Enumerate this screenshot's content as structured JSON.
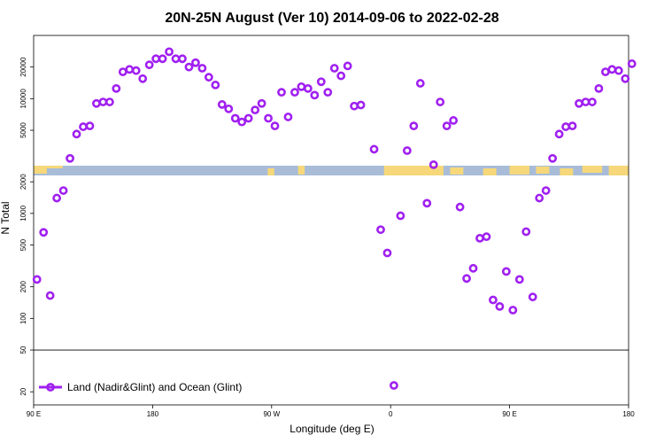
{
  "chart_data": {
    "type": "scatter",
    "title": "20N-25N August (Ver 10)   2014-09-06 to 2022-02-28",
    "xlabel": "Longitude (deg E)",
    "ylabel": "N Total",
    "x_tick_labels": [
      "90 E",
      "180",
      "90 W",
      "0",
      "90 E",
      "180"
    ],
    "x_tick_values": [
      90,
      180,
      270,
      360,
      450,
      540
    ],
    "xlim": [
      90,
      540
    ],
    "scale": "log",
    "y_tick_labels": [
      "20",
      "50",
      "100",
      "200",
      "500",
      "1000",
      "2000",
      "5000",
      "10000",
      "20000"
    ],
    "y_tick_values": [
      20,
      50,
      100,
      200,
      500,
      1000,
      2000,
      5000,
      10000,
      20000
    ],
    "y_break_lower": [
      15,
      2300
    ],
    "y_break_upper": [
      2300,
      40000
    ],
    "reference_line": 50,
    "map_strip": {
      "ocean_color": "#a8bcd8",
      "land_color": "#f6d87a"
    },
    "legend": {
      "label": "Land (Nadir&Glint) and Ocean (Glint)",
      "position": "bottom-left"
    },
    "series": [
      {
        "name": "Land (Nadir&Glint) and Ocean (Glint)",
        "color": "#a020f0",
        "points": [
          [
            92.5,
            235
          ],
          [
            97.5,
            660
          ],
          [
            102.5,
            165
          ],
          [
            107.5,
            1400
          ],
          [
            112.5,
            1650
          ],
          [
            117.5,
            2700
          ],
          [
            122.5,
            4600
          ],
          [
            127.5,
            5400
          ],
          [
            132.5,
            5500
          ],
          [
            137.5,
            9000
          ],
          [
            142.5,
            9300
          ],
          [
            147.5,
            9300
          ],
          [
            152.5,
            12500
          ],
          [
            157.5,
            18000
          ],
          [
            162.5,
            19000
          ],
          [
            167.5,
            18500
          ],
          [
            172.5,
            15500
          ],
          [
            177.5,
            21000
          ],
          [
            182.5,
            24000
          ],
          [
            187.5,
            24000
          ],
          [
            192.5,
            28000
          ],
          [
            197.5,
            24000
          ],
          [
            202.5,
            24000
          ],
          [
            207.5,
            20000
          ],
          [
            212.5,
            22000
          ],
          [
            217.5,
            19500
          ],
          [
            222.5,
            16000
          ],
          [
            227.5,
            13500
          ],
          [
            232.5,
            8800
          ],
          [
            237.5,
            8000
          ],
          [
            242.5,
            6500
          ],
          [
            247.5,
            6000
          ],
          [
            252.5,
            6500
          ],
          [
            257.5,
            7800
          ],
          [
            262.5,
            9000
          ],
          [
            267.5,
            6500
          ],
          [
            272.5,
            5500
          ],
          [
            277.5,
            11500
          ],
          [
            282.5,
            6700
          ],
          [
            287.5,
            11500
          ],
          [
            292.5,
            13000
          ],
          [
            297.5,
            12500
          ],
          [
            302.5,
            10800
          ],
          [
            307.5,
            14500
          ],
          [
            312.5,
            11500
          ],
          [
            317.5,
            19500
          ],
          [
            322.5,
            16500
          ],
          [
            327.5,
            20500
          ],
          [
            332.5,
            8500
          ],
          [
            337.5,
            8700
          ],
          [
            347.5,
            3300
          ],
          [
            352.5,
            700
          ],
          [
            357.5,
            420
          ],
          [
            362.5,
            23
          ],
          [
            367.5,
            950
          ],
          [
            372.5,
            3200
          ],
          [
            377.5,
            5500
          ],
          [
            382.5,
            14000
          ],
          [
            387.5,
            1250
          ],
          [
            392.5,
            2350
          ],
          [
            397.5,
            9300
          ],
          [
            402.5,
            5500
          ],
          [
            407.5,
            6200
          ],
          [
            412.5,
            1150
          ],
          [
            417.5,
            240
          ],
          [
            422.5,
            300
          ],
          [
            427.5,
            580
          ],
          [
            432.5,
            600
          ],
          [
            437.5,
            150
          ],
          [
            442.5,
            130
          ],
          [
            447.5,
            280
          ],
          [
            452.5,
            120
          ],
          [
            457.5,
            235
          ],
          [
            462.5,
            670
          ],
          [
            467.5,
            160
          ],
          [
            472.5,
            1400
          ],
          [
            477.5,
            1650
          ],
          [
            482.5,
            2700
          ],
          [
            487.5,
            4600
          ],
          [
            492.5,
            5400
          ],
          [
            497.5,
            5500
          ],
          [
            502.5,
            9000
          ],
          [
            507.5,
            9300
          ],
          [
            512.5,
            9300
          ],
          [
            517.5,
            12500
          ],
          [
            522.5,
            18000
          ],
          [
            527.5,
            19000
          ],
          [
            532.5,
            18500
          ],
          [
            537.5,
            15500
          ],
          [
            542.5,
            21500
          ]
        ]
      }
    ]
  }
}
